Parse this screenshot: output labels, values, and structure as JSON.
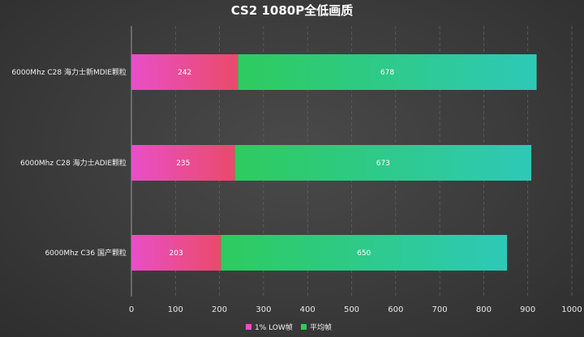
{
  "chart_data": {
    "type": "bar",
    "orientation": "horizontal",
    "stacked": true,
    "title": "CS2 1080P全低画质",
    "categories": [
      "6000Mhz C28 海力士新MDIE颗粒",
      "6000Mhz C28 海力士ADIE颗粒",
      "6000Mhz C36 国产颗粒"
    ],
    "series": [
      {
        "name": "1% LOW帧",
        "values": [
          242,
          235,
          203
        ]
      },
      {
        "name": "平均帧",
        "values": [
          678,
          673,
          650
        ]
      }
    ],
    "xlim": [
      0,
      1000
    ],
    "xticks": [
      0,
      100,
      200,
      300,
      400,
      500,
      600,
      700,
      800,
      900,
      1000
    ],
    "grid": "vertical",
    "legend_position": "bottom",
    "colors": {
      "series0_start": "#e94fc7",
      "series0_end": "#ea4a6a",
      "series1_start": "#2ecb5e",
      "series1_end": "#2ec9b7"
    }
  }
}
